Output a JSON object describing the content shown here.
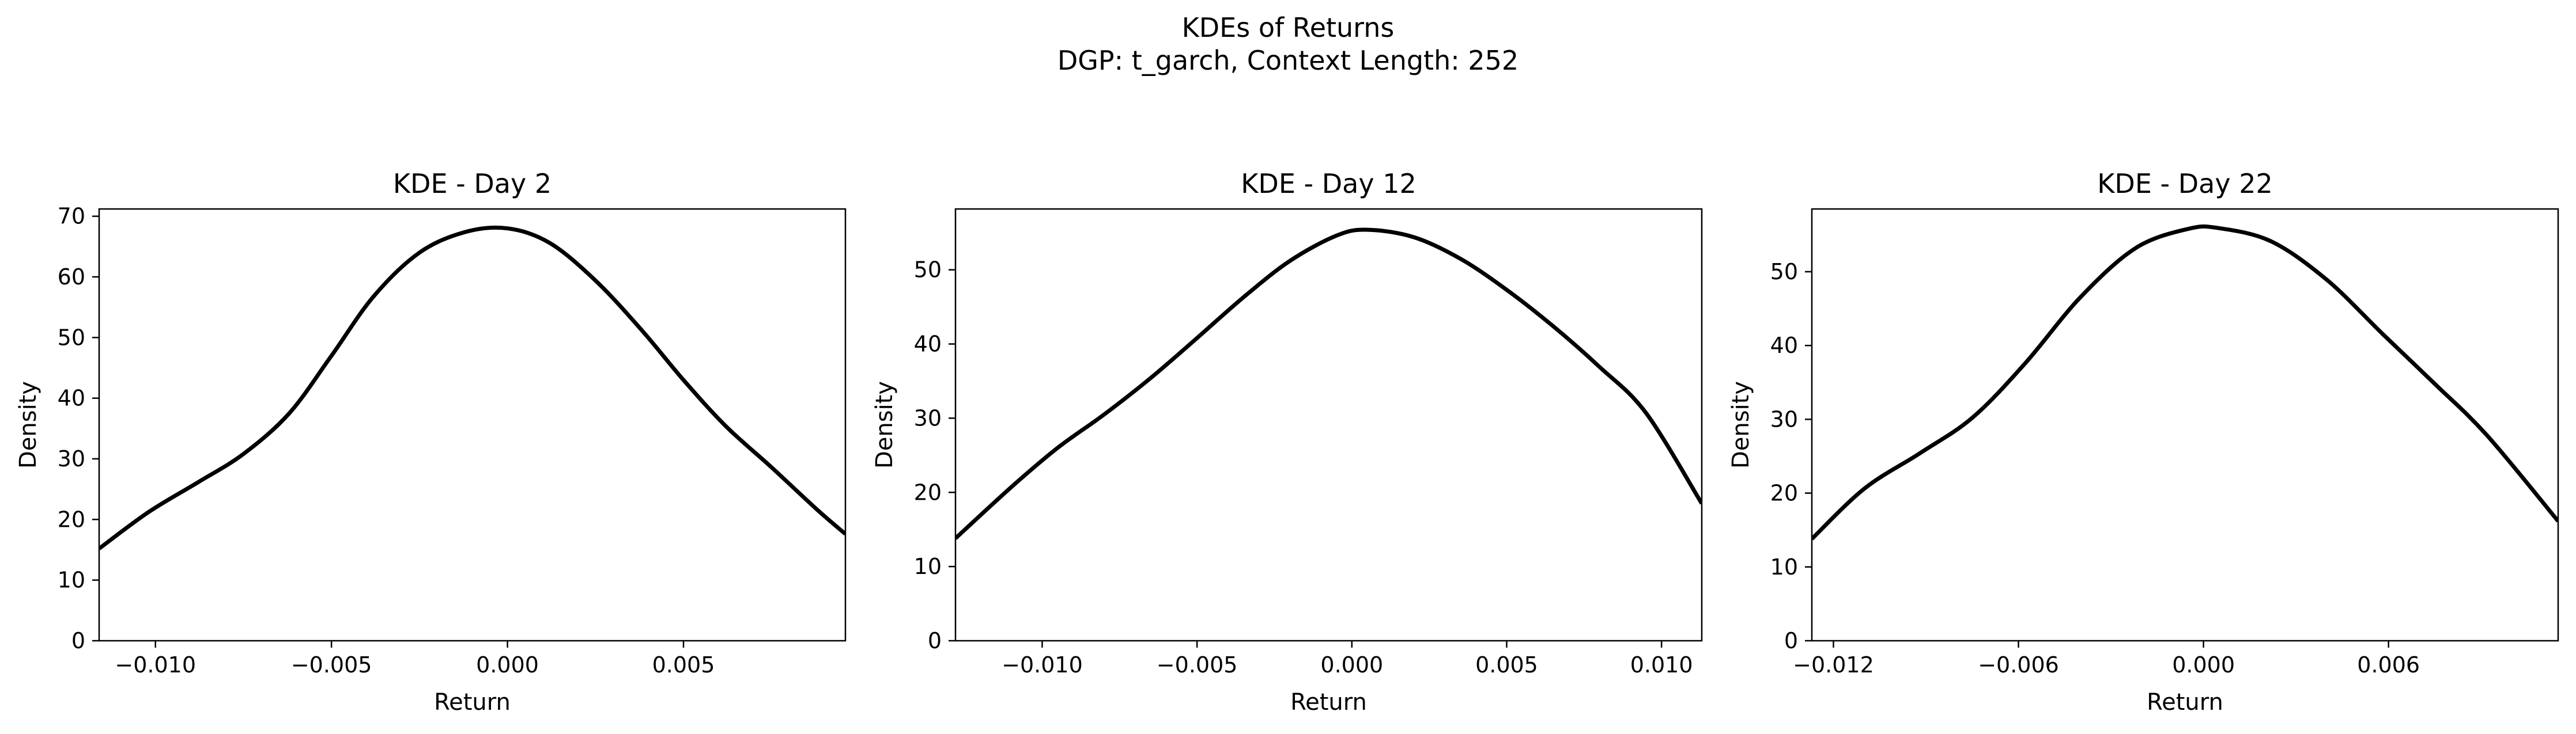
{
  "figure": {
    "title_line1": "KDEs of Returns",
    "title_line2": "DGP: t_garch, Context Length: 252"
  },
  "chart_data": [
    {
      "type": "line",
      "title": "KDE - Day 2",
      "xlabel": "Return",
      "ylabel": "Density",
      "xlim": [
        -0.0116,
        0.0096
      ],
      "ylim": [
        0,
        71.2
      ],
      "xticks": [
        -0.01,
        -0.005,
        0.0,
        0.005
      ],
      "xtick_labels": [
        "−0.010",
        "−0.005",
        "0.000",
        "0.005"
      ],
      "yticks": [
        0,
        10,
        20,
        30,
        40,
        50,
        60,
        70
      ],
      "ytick_labels": [
        "0",
        "10",
        "20",
        "30",
        "40",
        "50",
        "60",
        "70"
      ],
      "grid": false,
      "line_color": "#000000",
      "series": [
        {
          "x": [
            -0.0116,
            -0.0102,
            -0.0088,
            -0.0075,
            -0.0062,
            -0.005,
            -0.0038,
            -0.0025,
            -0.0012,
            0.0,
            0.0012,
            0.0025,
            0.0038,
            0.005,
            0.0062,
            0.0075,
            0.0088,
            0.0096
          ],
          "y": [
            15.2,
            21.2,
            26.1,
            30.8,
            37.5,
            47.0,
            56.8,
            64.0,
            67.4,
            68.0,
            65.6,
            59.4,
            51.3,
            43.0,
            35.4,
            28.6,
            21.6,
            17.6
          ]
        }
      ]
    },
    {
      "type": "line",
      "title": "KDE - Day 12",
      "xlabel": "Return",
      "ylabel": "Density",
      "xlim": [
        -0.0128,
        0.0113
      ],
      "ylim": [
        0,
        58.2
      ],
      "xticks": [
        -0.01,
        -0.005,
        0.0,
        0.005,
        0.01
      ],
      "xtick_labels": [
        "−0.010",
        "−0.005",
        "0.000",
        "0.005",
        "0.010"
      ],
      "yticks": [
        0,
        10,
        20,
        30,
        40,
        50
      ],
      "ytick_labels": [
        "0",
        "10",
        "20",
        "30",
        "40",
        "50"
      ],
      "grid": false,
      "line_color": "#000000",
      "series": [
        {
          "x": [
            -0.0128,
            -0.011,
            -0.0095,
            -0.008,
            -0.0065,
            -0.005,
            -0.0035,
            -0.002,
            -0.0005,
            0.0005,
            0.002,
            0.0035,
            0.005,
            0.0065,
            0.008,
            0.0095,
            0.0113
          ],
          "y": [
            13.8,
            20.7,
            26.0,
            30.5,
            35.4,
            40.8,
            46.3,
            51.2,
            54.6,
            55.4,
            54.4,
            51.5,
            47.3,
            42.4,
            36.9,
            30.7,
            18.5
          ]
        }
      ]
    },
    {
      "type": "line",
      "title": "KDE - Day 22",
      "xlabel": "Return",
      "ylabel": "Density",
      "xlim": [
        -0.0127,
        0.0115
      ],
      "ylim": [
        0,
        58.5
      ],
      "xticks": [
        -0.012,
        -0.006,
        0.0,
        0.006
      ],
      "xtick_labels": [
        "−0.012",
        "−0.006",
        "0.000",
        "0.006"
      ],
      "yticks": [
        0,
        10,
        20,
        30,
        40,
        50
      ],
      "ytick_labels": [
        "0",
        "10",
        "20",
        "30",
        "40",
        "50"
      ],
      "grid": false,
      "line_color": "#000000",
      "series": [
        {
          "x": [
            -0.0127,
            -0.011,
            -0.0092,
            -0.0075,
            -0.0058,
            -0.004,
            -0.0022,
            -0.0005,
            0.0005,
            0.0022,
            0.004,
            0.0058,
            0.0075,
            0.0092,
            0.0115
          ],
          "y": [
            13.8,
            20.6,
            25.4,
            30.2,
            37.5,
            46.5,
            53.2,
            55.8,
            55.9,
            54.1,
            48.9,
            41.6,
            34.8,
            27.8,
            16.2
          ]
        }
      ]
    }
  ]
}
